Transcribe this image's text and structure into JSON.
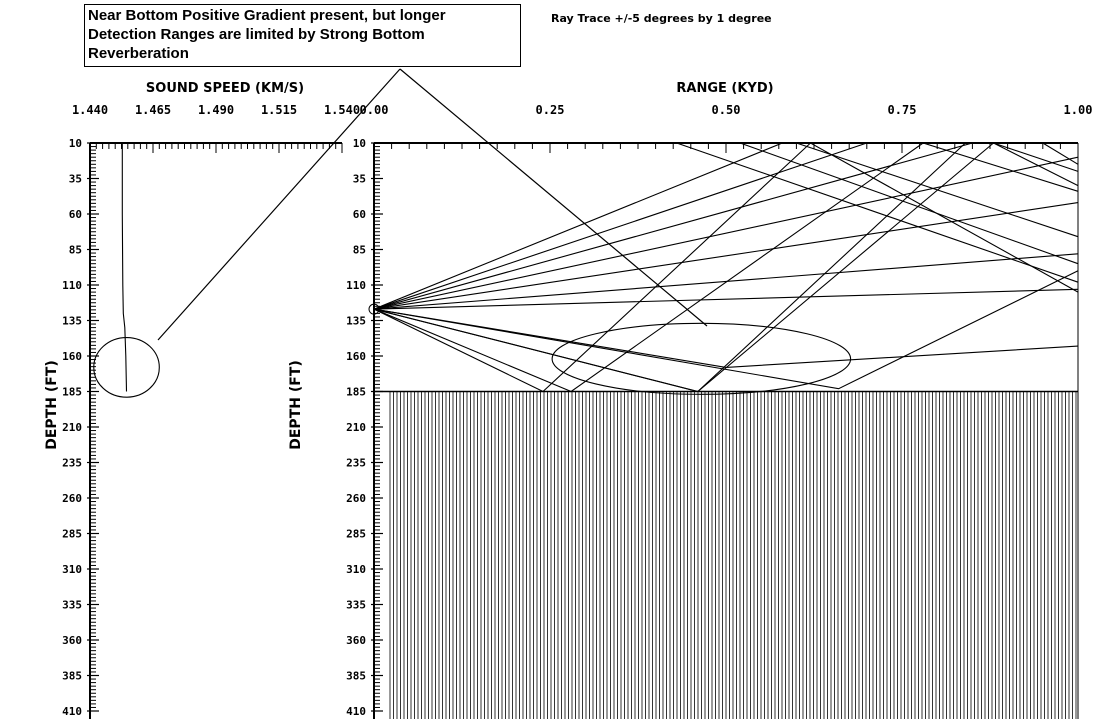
{
  "annotation": {
    "lines": [
      "Near Bottom Positive Gradient present, but longer",
      "Detection Ranges are limited by Strong Bottom",
      "Reverberation"
    ]
  },
  "subtitle": "Ray Trace +/-5 degrees by 1 degree",
  "chart_data": [
    {
      "type": "line",
      "title": "SOUND SPEED (KM/S)",
      "xlabel": "SOUND SPEED (KM/S)",
      "ylabel": "DEPTH (FT)",
      "x_tick_labels": [
        "1.440",
        "1.465",
        "1.490",
        "1.515",
        "1.540"
      ],
      "xlim": [
        1.44,
        1.54
      ],
      "y_tick_labels": [
        "10",
        "35",
        "60",
        "85",
        "110",
        "135",
        "160",
        "185",
        "210",
        "235",
        "260",
        "285",
        "310",
        "335",
        "360",
        "385",
        "410"
      ],
      "ylim": [
        10,
        410
      ],
      "y_inverted": true,
      "grid": false,
      "series": [
        {
          "x": [
            1.4528,
            1.4528,
            1.453,
            1.4532,
            1.4538,
            1.4542,
            1.4545
          ],
          "y": [
            10,
            60,
            110,
            130,
            140,
            160,
            185
          ]
        }
      ],
      "annotations": [
        {
          "type": "ellipse",
          "cx": 1.4545,
          "cy": 168,
          "rx": 0.013,
          "ry": 21
        }
      ]
    },
    {
      "type": "line",
      "title": "RANGE (KYD)",
      "xlabel": "RANGE (KYD)",
      "ylabel": "DEPTH (FT)",
      "x_tick_labels": [
        "0.00",
        "0.25",
        "0.50",
        "0.75",
        "1.00"
      ],
      "xlim": [
        0.0,
        1.0
      ],
      "y_tick_labels": [
        "10",
        "35",
        "60",
        "85",
        "110",
        "135",
        "160",
        "185",
        "210",
        "235",
        "260",
        "285",
        "310",
        "335",
        "360",
        "385",
        "410"
      ],
      "ylim": [
        10,
        410
      ],
      "y_inverted": true,
      "grid": false,
      "bottom_depth": 185,
      "source": {
        "range": 0.0,
        "depth": 127
      },
      "series": [
        {
          "x": [
            0.0,
            0.58
          ],
          "y": [
            127,
            10
          ]
        },
        {
          "x": [
            0.0,
            0.7
          ],
          "y": [
            127,
            10
          ]
        },
        {
          "x": [
            0.0,
            0.85
          ],
          "y": [
            127,
            10
          ]
        },
        {
          "x": [
            0.0,
            1.0
          ],
          "y": [
            127,
            20
          ]
        },
        {
          "x": [
            0.0,
            1.0
          ],
          "y": [
            127,
            52
          ]
        },
        {
          "x": [
            0.0,
            1.0
          ],
          "y": [
            127,
            88
          ]
        },
        {
          "x": [
            0.0,
            1.0
          ],
          "y": [
            127,
            113
          ]
        },
        {
          "x": [
            0.0,
            0.5,
            1.0
          ],
          "y": [
            127,
            168,
            153
          ]
        },
        {
          "x": [
            0.0,
            0.28,
            0.78,
            1.0
          ],
          "y": [
            127,
            185,
            10,
            44
          ]
        },
        {
          "x": [
            0.0,
            0.24,
            0.62,
            1.0
          ],
          "y": [
            127,
            185,
            10,
            115
          ]
        },
        {
          "x": [
            0.0,
            0.46,
            0.88,
            1.0
          ],
          "y": [
            127,
            185,
            10,
            40
          ]
        },
        {
          "x": [
            0.0,
            0.46,
            0.84
          ],
          "y": [
            127,
            185,
            10
          ]
        },
        {
          "x": [
            0.0,
            0.66,
            1.0
          ],
          "y": [
            127,
            183,
            100
          ]
        },
        {
          "x": [
            0.43,
            1.0
          ],
          "y": [
            10,
            108
          ]
        },
        {
          "x": [
            0.52,
            1.0
          ],
          "y": [
            10,
            95
          ]
        },
        {
          "x": [
            0.6,
            1.0
          ],
          "y": [
            10,
            76
          ]
        },
        {
          "x": [
            0.88,
            1.0
          ],
          "y": [
            10,
            30
          ]
        },
        {
          "x": [
            0.95,
            1.0
          ],
          "y": [
            10,
            25
          ]
        }
      ],
      "annotations": [
        {
          "type": "ellipse",
          "cx": 0.465,
          "cy": 162,
          "rx": 0.212,
          "ry": 25
        }
      ]
    }
  ]
}
